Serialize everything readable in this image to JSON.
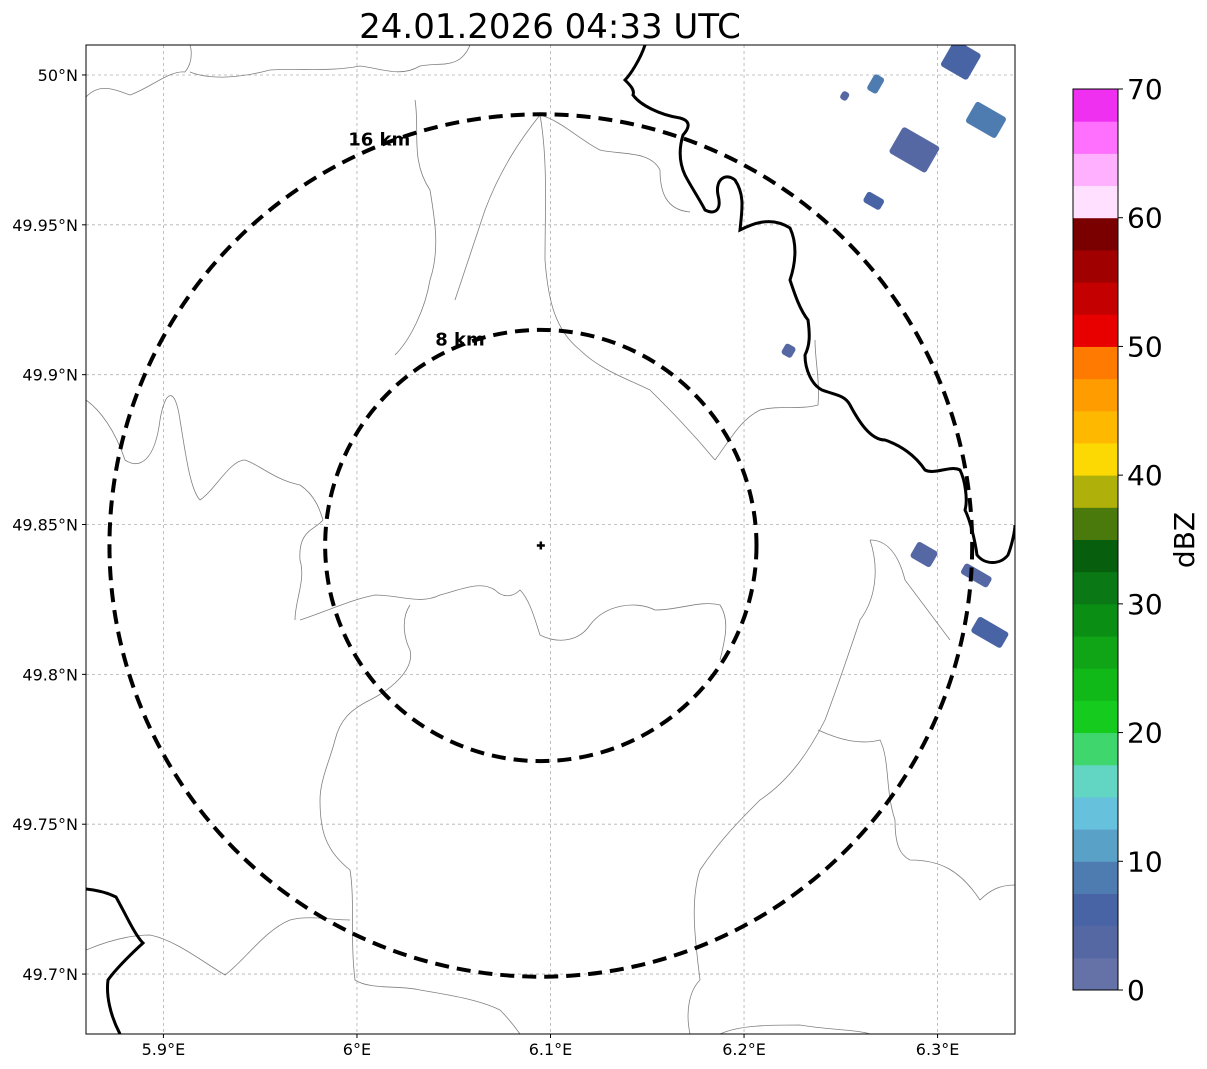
{
  "title": "24.01.2026 04:33 UTC",
  "map": {
    "lon_range": [
      5.86,
      6.34
    ],
    "lat_range": [
      49.68,
      50.01
    ],
    "grid": true,
    "x_ticks": [
      {
        "value": 5.9,
        "label": "5.9°E"
      },
      {
        "value": 6.0,
        "label": "6°E"
      },
      {
        "value": 6.1,
        "label": "6.1°E"
      },
      {
        "value": 6.2,
        "label": "6.2°E"
      },
      {
        "value": 6.3,
        "label": "6.3°E"
      }
    ],
    "y_ticks": [
      {
        "value": 50.0,
        "label": "50°N"
      },
      {
        "value": 49.95,
        "label": "49.95°N"
      },
      {
        "value": 49.9,
        "label": "49.9°N"
      },
      {
        "value": 49.85,
        "label": "49.85°N"
      },
      {
        "value": 49.8,
        "label": "49.8°N"
      },
      {
        "value": 49.75,
        "label": "49.75°N"
      },
      {
        "value": 49.7,
        "label": "49.7°N"
      }
    ],
    "radar_site": {
      "lon": 6.095,
      "lat": 49.843,
      "marker": "plus"
    },
    "range_rings": [
      {
        "radius_km": 8,
        "label": "8 km"
      },
      {
        "radius_km": 16,
        "label": "16 km"
      }
    ]
  },
  "colorbar": {
    "label": "dBZ",
    "min": 0,
    "max": 70,
    "step": 2.5,
    "ticks": [
      {
        "value": 0,
        "label": "0"
      },
      {
        "value": 10,
        "label": "10"
      },
      {
        "value": 20,
        "label": "20"
      },
      {
        "value": 30,
        "label": "30"
      },
      {
        "value": 40,
        "label": "40"
      },
      {
        "value": 50,
        "label": "50"
      },
      {
        "value": 60,
        "label": "60"
      },
      {
        "value": 70,
        "label": "70"
      }
    ],
    "colors": [
      "#6472a8",
      "#5668a4",
      "#4864a4",
      "#4f7cb0",
      "#5aa1c8",
      "#66c1dd",
      "#63d6c3",
      "#3fd66e",
      "#14cb1e",
      "#10b818",
      "#0fa516",
      "#0b8e14",
      "#0a7814",
      "#075f0d",
      "#4a7a0b",
      "#b0b00a",
      "#fcd902",
      "#ffb800",
      "#ff9c00",
      "#ff7a00",
      "#e80000",
      "#c40000",
      "#a00000",
      "#7a0000",
      "#ffe0ff",
      "#ffb0ff",
      "#ff70ff",
      "#f030f0"
    ]
  },
  "echoes": [
    {
      "lon": 6.293,
      "lat": 49.84,
      "dbz": 4,
      "size": [
        0.012,
        0.006
      ]
    },
    {
      "lon": 6.32,
      "lat": 49.833,
      "dbz": 3,
      "size": [
        0.016,
        0.004
      ]
    },
    {
      "lon": 6.327,
      "lat": 49.814,
      "dbz": 5,
      "size": [
        0.018,
        0.006
      ]
    },
    {
      "lon": 6.223,
      "lat": 49.908,
      "dbz": 3,
      "size": [
        0.006,
        0.004
      ]
    },
    {
      "lon": 6.267,
      "lat": 49.958,
      "dbz": 5,
      "size": [
        0.01,
        0.004
      ]
    },
    {
      "lon": 6.288,
      "lat": 49.975,
      "dbz": 4,
      "size": [
        0.022,
        0.01
      ]
    },
    {
      "lon": 6.268,
      "lat": 49.997,
      "dbz": 8,
      "size": [
        0.006,
        0.006
      ]
    },
    {
      "lon": 6.252,
      "lat": 49.993,
      "dbz": 3,
      "size": [
        0.004,
        0.003
      ]
    },
    {
      "lon": 6.312,
      "lat": 50.005,
      "dbz": 7,
      "size": [
        0.016,
        0.01
      ]
    },
    {
      "lon": 6.325,
      "lat": 49.985,
      "dbz": 9,
      "size": [
        0.018,
        0.008
      ]
    }
  ]
}
